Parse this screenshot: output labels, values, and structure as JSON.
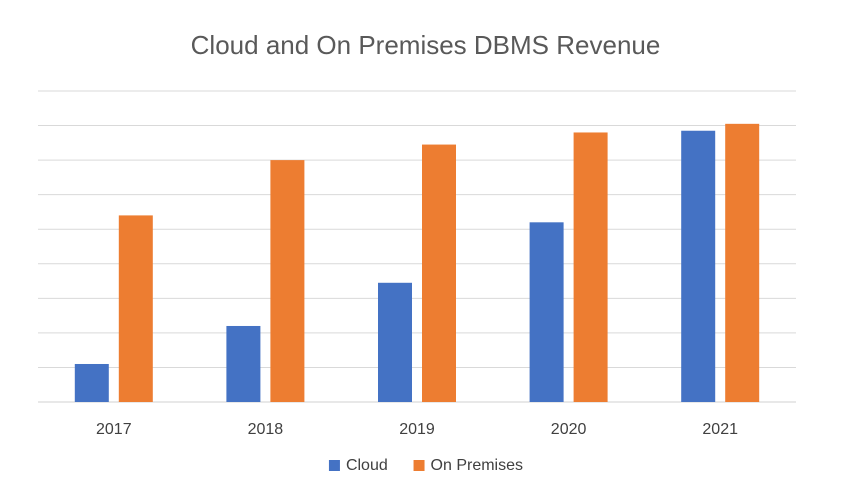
{
  "chart_data": {
    "type": "bar",
    "title": "Cloud and On Premises DBMS Revenue",
    "xlabel": "",
    "ylabel": "",
    "categories": [
      "2017",
      "2018",
      "2019",
      "2020",
      "2021"
    ],
    "series": [
      {
        "name": "Cloud",
        "color": "#4472C4",
        "values": [
          1.1,
          2.2,
          3.45,
          5.2,
          7.85
        ]
      },
      {
        "name": "On Premises",
        "color": "#ED7D31",
        "values": [
          5.4,
          7.0,
          7.45,
          7.8,
          8.05
        ]
      }
    ],
    "ylim": [
      0,
      9
    ],
    "y_axis_labels_shown": false,
    "grid": true,
    "legend": "bottom"
  }
}
